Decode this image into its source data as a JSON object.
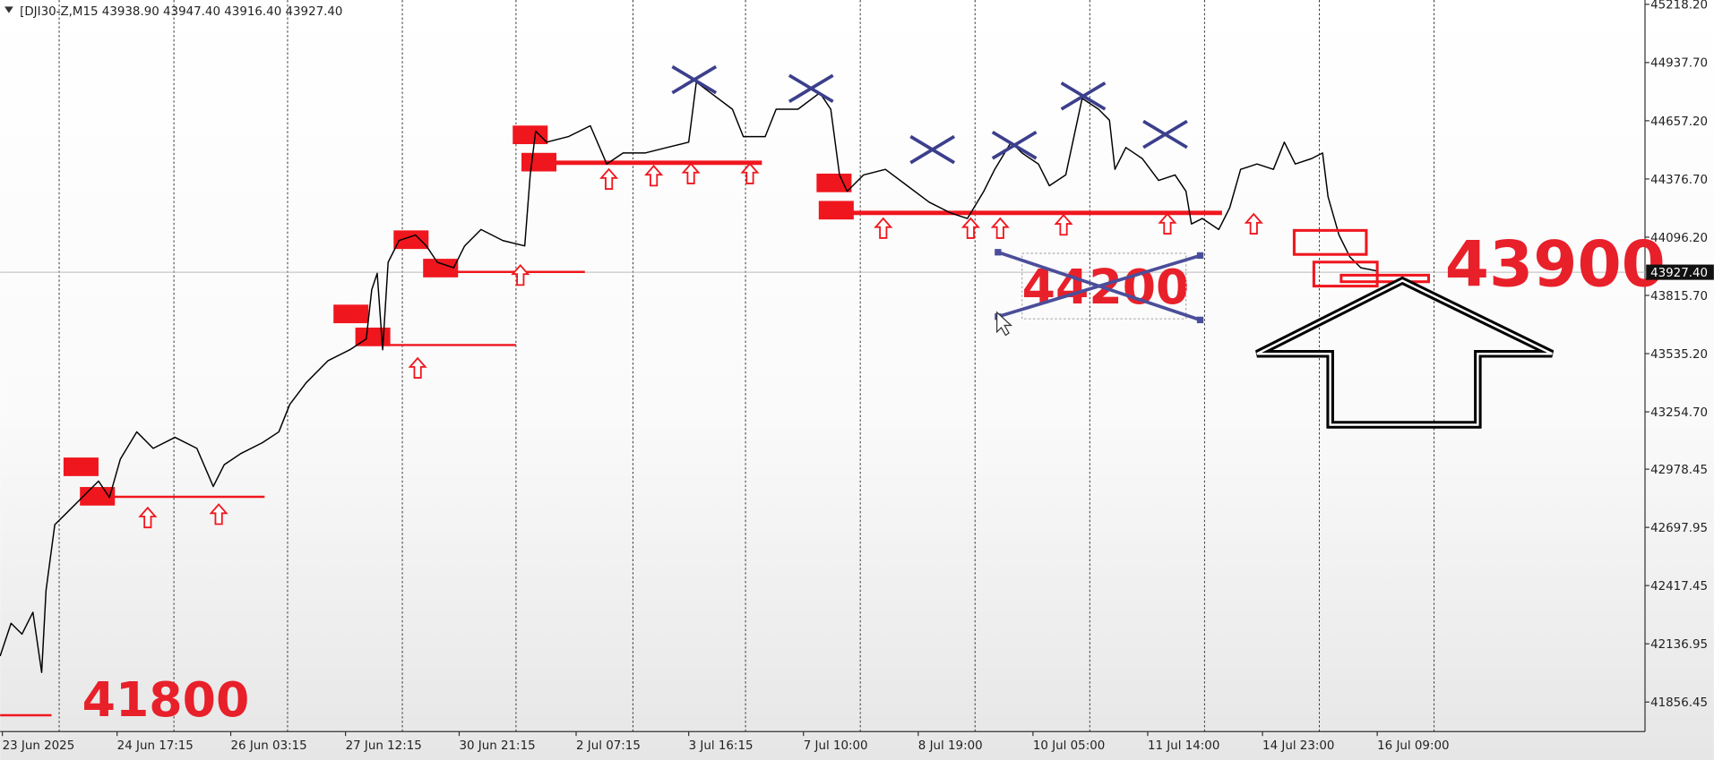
{
  "chart_data": {
    "type": "line",
    "title": "[DJI30-Z,M15  43938.90 43947.40 43916.40 43927.40",
    "series": [
      {
        "color": "#000000",
        "x": [
          0,
          10,
          20,
          30,
          38,
          42,
          50,
          60,
          75,
          90,
          100,
          110,
          125,
          140,
          160,
          180,
          195,
          205,
          220,
          240,
          255,
          265,
          280,
          300,
          320,
          335,
          340,
          345,
          350,
          355,
          365,
          380,
          390,
          400,
          415,
          425,
          440,
          460,
          480,
          485,
          490,
          500,
          520,
          540,
          555,
          570,
          590,
          610,
          630,
          637,
          650,
          670,
          680,
          700,
          710,
          730,
          750,
          760,
          768,
          775,
          790,
          810,
          830,
          850,
          870,
          885,
          900,
          910,
          925,
          935,
          950,
          960,
          975,
          990,
          1005,
          1015,
          1020,
          1030,
          1045,
          1060,
          1075,
          1085,
          1090,
          1100,
          1115,
          1125,
          1135,
          1150,
          1165,
          1175,
          1185,
          1200,
          1210,
          1215,
          1225,
          1235,
          1245,
          1260
        ],
        "values": [
          42078,
          42236,
          42184,
          42289,
          41999,
          42395,
          42711,
          42763,
          42842,
          42921,
          42842,
          43027,
          43158,
          43079,
          43132,
          43079,
          42895,
          43000,
          43053,
          43106,
          43158,
          43290,
          43395,
          43501,
          43554,
          43606,
          43843,
          43922,
          43554,
          43975,
          44080,
          44107,
          44054,
          43975,
          43949,
          44054,
          44133,
          44080,
          44054,
          44396,
          44607,
          44554,
          44581,
          44633,
          44449,
          44502,
          44502,
          44528,
          44554,
          44844,
          44792,
          44713,
          44581,
          44581,
          44713,
          44713,
          44792,
          44713,
          44396,
          44317,
          44396,
          44423,
          44344,
          44265,
          44212,
          44186,
          44317,
          44423,
          44554,
          44502,
          44449,
          44344,
          44396,
          44765,
          44713,
          44660,
          44423,
          44528,
          44475,
          44370,
          44396,
          44317,
          44160,
          44186,
          44133,
          44238,
          44423,
          44449,
          44423,
          44554,
          44449,
          44475,
          44502,
          44291,
          44107,
          44001,
          43949,
          43933
        ]
      }
    ],
    "xlim": [
      0,
      1505
    ],
    "ylim": [
      41714,
      45239
    ],
    "xticks": [
      {
        "value": 2,
        "label": "23 Jun 2025"
      },
      {
        "value": 107,
        "label": "24 Jun 17:15"
      },
      {
        "value": 211,
        "label": "26 Jun 03:15"
      },
      {
        "value": 316,
        "label": "27 Jun 12:15"
      },
      {
        "value": 420,
        "label": "30 Jun 21:15"
      },
      {
        "value": 527,
        "label": "2 Jul 07:15"
      },
      {
        "value": 630,
        "label": "3 Jul 16:15"
      },
      {
        "value": 735,
        "label": "7 Jul 10:00"
      },
      {
        "value": 840,
        "label": "8 Jul 19:00"
      },
      {
        "value": 945,
        "label": "10 Jul 05:00"
      },
      {
        "value": 1050,
        "label": "11 Jul 14:00"
      },
      {
        "value": 1155,
        "label": "14 Jul 23:00"
      },
      {
        "value": 1260,
        "label": "16 Jul 09:00"
      }
    ],
    "yticks": [
      {
        "value": 45218.2,
        "label": "45218.20"
      },
      {
        "value": 44937.7,
        "label": "44937.70"
      },
      {
        "value": 44657.2,
        "label": "44657.20"
      },
      {
        "value": 44376.7,
        "label": "44376.70"
      },
      {
        "value": 44096.2,
        "label": "44096.20"
      },
      {
        "value": 43815.7,
        "label": "43815.70"
      },
      {
        "value": 43535.2,
        "label": "43535.20"
      },
      {
        "value": 43254.7,
        "label": "43254.70"
      },
      {
        "value": 42978.45,
        "label": "42978.45"
      },
      {
        "value": 42697.95,
        "label": "42697.95"
      },
      {
        "value": 42417.45,
        "label": "42417.45"
      },
      {
        "value": 42136.95,
        "label": "42136.95"
      },
      {
        "value": 41856.45,
        "label": "41856.45"
      }
    ],
    "price_marker": {
      "value": 43927.4,
      "label": "43927.40"
    },
    "grid": true,
    "annotations": [
      "41800",
      "44200",
      "43900"
    ]
  }
}
